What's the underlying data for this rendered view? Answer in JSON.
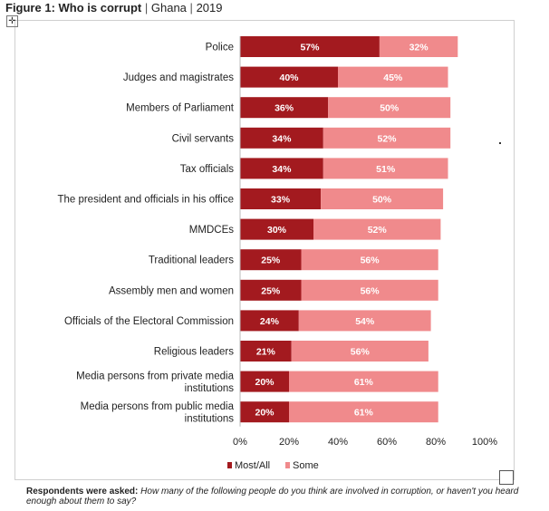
{
  "header": {
    "figure_label": "Figure 1: Who is corrupt",
    "country": "Ghana",
    "year": "2019",
    "separator": "|"
  },
  "icons": {
    "move_handle": "move-cross-icon",
    "resize_handle": "resize-square-icon"
  },
  "colors": {
    "most_all": "#a31a1f",
    "some": "#f08a8c"
  },
  "footnote": {
    "label": "Respondents were asked:",
    "question": "How many of the following people do you think are involved in corruption, or haven't you heard enough about them to say?"
  },
  "chart_data": {
    "type": "bar",
    "orientation": "horizontal",
    "stacked": true,
    "categories": [
      "Police",
      "Judges and magistrates",
      "Members of Parliament",
      "Civil servants",
      "Tax officials",
      "The president and officials in his office",
      "MMDCEs",
      "Traditional leaders",
      "Assembly men and women",
      "Officials of the Electoral Commission",
      "Religious leaders",
      "Media persons from private media institutions",
      "Media persons from public media institutions"
    ],
    "series": [
      {
        "name": "Most/All",
        "color": "#a31a1f",
        "values": [
          57,
          40,
          36,
          34,
          34,
          33,
          30,
          25,
          25,
          24,
          21,
          20,
          20
        ]
      },
      {
        "name": "Some",
        "color": "#f08a8c",
        "values": [
          32,
          45,
          50,
          52,
          51,
          50,
          52,
          56,
          56,
          54,
          56,
          61,
          61
        ]
      }
    ],
    "xlim": [
      0,
      100
    ],
    "x_ticks": [
      "0%",
      "20%",
      "40%",
      "60%",
      "80%",
      "100%"
    ],
    "legend_position": "bottom",
    "grid": false
  }
}
